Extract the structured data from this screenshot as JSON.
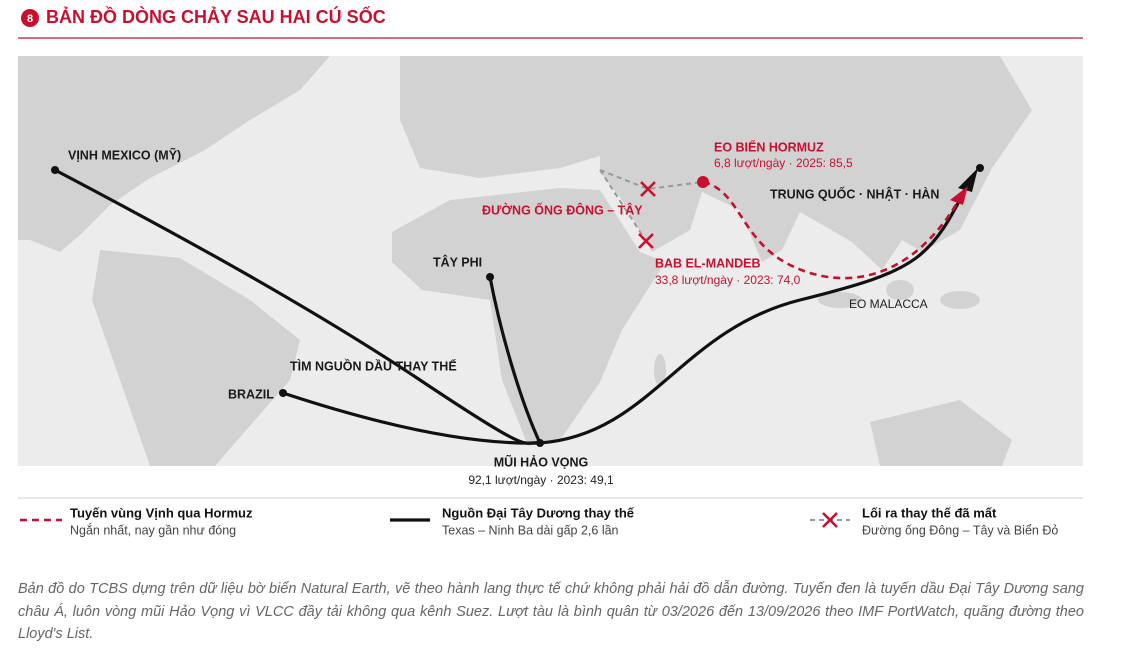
{
  "header": {
    "number": "8",
    "title": "BẢN ĐỒ DÒNG CHẢY SAU HAI CÚ SỐC"
  },
  "map": {
    "places": [
      {
        "label": "VỊNH MEXICO (MỸ)"
      },
      {
        "label": "TÂY PHI"
      },
      {
        "label": "BRAZIL"
      },
      {
        "label": "TRUNG QUỐC · NHẬT · HÀN"
      }
    ],
    "annotation": "TÌM NGUỒN DẦU THAY THẾ",
    "chokepoints": [
      {
        "label": "MŨI HẢO VỌNG",
        "detail": "92,1 lượt/ngày · 2023: 49,1"
      },
      {
        "label": "EO BIỂN HORMUZ",
        "detail": "6,8 lượt/ngày · 2025: 85,5"
      },
      {
        "label": "BAB EL-MANDEB",
        "detail": "33,8 lượt/ngày · 2023: 74,0"
      },
      {
        "label": "EO MALACCA"
      }
    ],
    "pipeline": "ĐƯỜNG ỐNG ĐÔNG – TÂY"
  },
  "legend": [
    {
      "title": "Tuyến vùng Vịnh qua Hormuz",
      "subtitle": "Ngắn nhất, nay gần như đóng"
    },
    {
      "title": "Nguồn Đại Tây Dương thay thế",
      "subtitle": "Texas – Ninh Ba dài gấp 2,6 lần"
    },
    {
      "title": "Lối ra thay thế đã mất",
      "subtitle": "Đường ống Đông – Tây và Biển Đỏ"
    }
  ],
  "caption": "Bản đồ do TCBS dựng trên dữ liệu bờ biển Natural Earth, vẽ theo hành lang thực tế chứ không phải hải đồ dẫn đường. Tuyến đen là tuyến dầu Đại Tây Dương sang châu Á, luôn vòng mũi Hảo Vọng vì VLCC đầy tải không qua kênh Suez. Lượt tàu là bình quân từ 03/2026 đến 13/09/2026 theo IMF PortWatch, quãng đường theo Lloyd's List."
}
